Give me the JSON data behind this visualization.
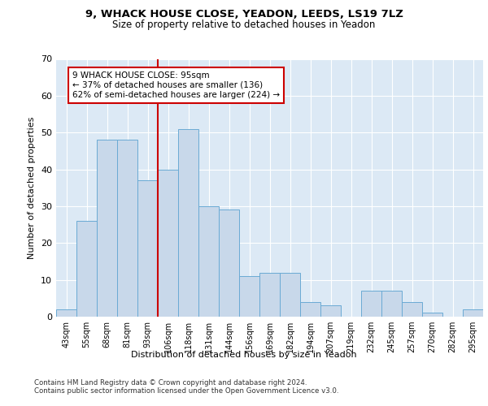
{
  "title1": "9, WHACK HOUSE CLOSE, YEADON, LEEDS, LS19 7LZ",
  "title2": "Size of property relative to detached houses in Yeadon",
  "xlabel": "Distribution of detached houses by size in Yeadon",
  "ylabel": "Number of detached properties",
  "categories": [
    "43sqm",
    "55sqm",
    "68sqm",
    "81sqm",
    "93sqm",
    "106sqm",
    "118sqm",
    "131sqm",
    "144sqm",
    "156sqm",
    "169sqm",
    "182sqm",
    "194sqm",
    "207sqm",
    "219sqm",
    "232sqm",
    "245sqm",
    "257sqm",
    "270sqm",
    "282sqm",
    "295sqm"
  ],
  "values": [
    2,
    26,
    48,
    48,
    37,
    40,
    51,
    30,
    29,
    11,
    12,
    12,
    4,
    3,
    0,
    7,
    7,
    4,
    1,
    0,
    2
  ],
  "bar_color": "#c8d8ea",
  "bar_edge_color": "#6aaad4",
  "vline_x": 4.5,
  "vline_color": "#cc0000",
  "annotation_text": "9 WHACK HOUSE CLOSE: 95sqm\n← 37% of detached houses are smaller (136)\n62% of semi-detached houses are larger (224) →",
  "annotation_box_color": "#ffffff",
  "annotation_box_edge": "#cc0000",
  "ylim": [
    0,
    70
  ],
  "yticks": [
    0,
    10,
    20,
    30,
    40,
    50,
    60,
    70
  ],
  "footer1": "Contains HM Land Registry data © Crown copyright and database right 2024.",
  "footer2": "Contains public sector information licensed under the Open Government Licence v3.0.",
  "bg_color": "#ffffff",
  "plot_bg_color": "#dce9f5",
  "grid_color": "#ffffff"
}
